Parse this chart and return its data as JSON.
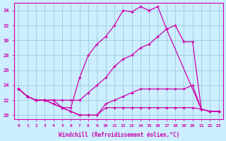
{
  "xlabel": "Windchill (Refroidissement éolien,°C)",
  "xlim": [
    -0.5,
    23.5
  ],
  "ylim": [
    19.5,
    35.0
  ],
  "yticks": [
    20,
    22,
    24,
    26,
    28,
    30,
    32,
    34
  ],
  "xticks": [
    0,
    1,
    2,
    3,
    4,
    5,
    6,
    7,
    8,
    9,
    10,
    11,
    12,
    13,
    14,
    15,
    16,
    17,
    18,
    19,
    20,
    21,
    22,
    23
  ],
  "background_color": "#cceeff",
  "grid_color": "#99ccdd",
  "line_color": "#cc00aa",
  "lines": [
    {
      "x": [
        0,
        1,
        2,
        3,
        4,
        5,
        6,
        7,
        8,
        9,
        10,
        11,
        12,
        13,
        14,
        15,
        16,
        17,
        18,
        19,
        20,
        21,
        22,
        23
      ],
      "y": [
        23.5,
        22.5,
        22.0,
        22.0,
        22.0,
        21.0,
        20.5,
        20.0,
        20.0,
        20.0,
        21.0,
        21.0,
        21.0,
        21.0,
        21.0,
        21.0,
        21.0,
        21.0,
        21.0,
        21.0,
        21.0,
        20.8,
        20.5,
        20.5
      ]
    },
    {
      "x": [
        0,
        1,
        2,
        3,
        4,
        5,
        6,
        7,
        8,
        9,
        10,
        11,
        12,
        13,
        14,
        15,
        16,
        17,
        18,
        19,
        20,
        21,
        22,
        23
      ],
      "y": [
        23.5,
        22.5,
        22.0,
        22.0,
        21.5,
        21.0,
        20.5,
        20.0,
        20.0,
        20.0,
        21.5,
        22.0,
        22.5,
        23.0,
        23.5,
        23.5,
        23.5,
        23.5,
        23.5,
        23.5,
        24.0,
        20.8,
        20.5,
        20.5
      ]
    },
    {
      "x": [
        0,
        1,
        2,
        3,
        4,
        5,
        6,
        7,
        8,
        9,
        10,
        11,
        12,
        13,
        14,
        15,
        16,
        17,
        21,
        22,
        23
      ],
      "y": [
        23.5,
        22.5,
        22.0,
        22.0,
        21.5,
        21.0,
        21.0,
        25.0,
        28.0,
        29.5,
        30.5,
        32.0,
        34.0,
        33.8,
        34.5,
        34.0,
        34.5,
        31.5,
        20.8,
        20.5,
        20.5
      ]
    },
    {
      "x": [
        0,
        1,
        2,
        3,
        4,
        5,
        6,
        7,
        8,
        9,
        10,
        11,
        12,
        13,
        14,
        15,
        16,
        17,
        18,
        19,
        20,
        21,
        22,
        23
      ],
      "y": [
        23.5,
        22.5,
        22.0,
        22.0,
        22.0,
        22.0,
        22.0,
        22.0,
        23.0,
        24.0,
        25.0,
        26.5,
        27.5,
        28.0,
        29.0,
        29.5,
        30.5,
        31.5,
        32.0,
        29.8,
        29.8,
        20.8,
        20.5,
        20.5
      ]
    }
  ]
}
